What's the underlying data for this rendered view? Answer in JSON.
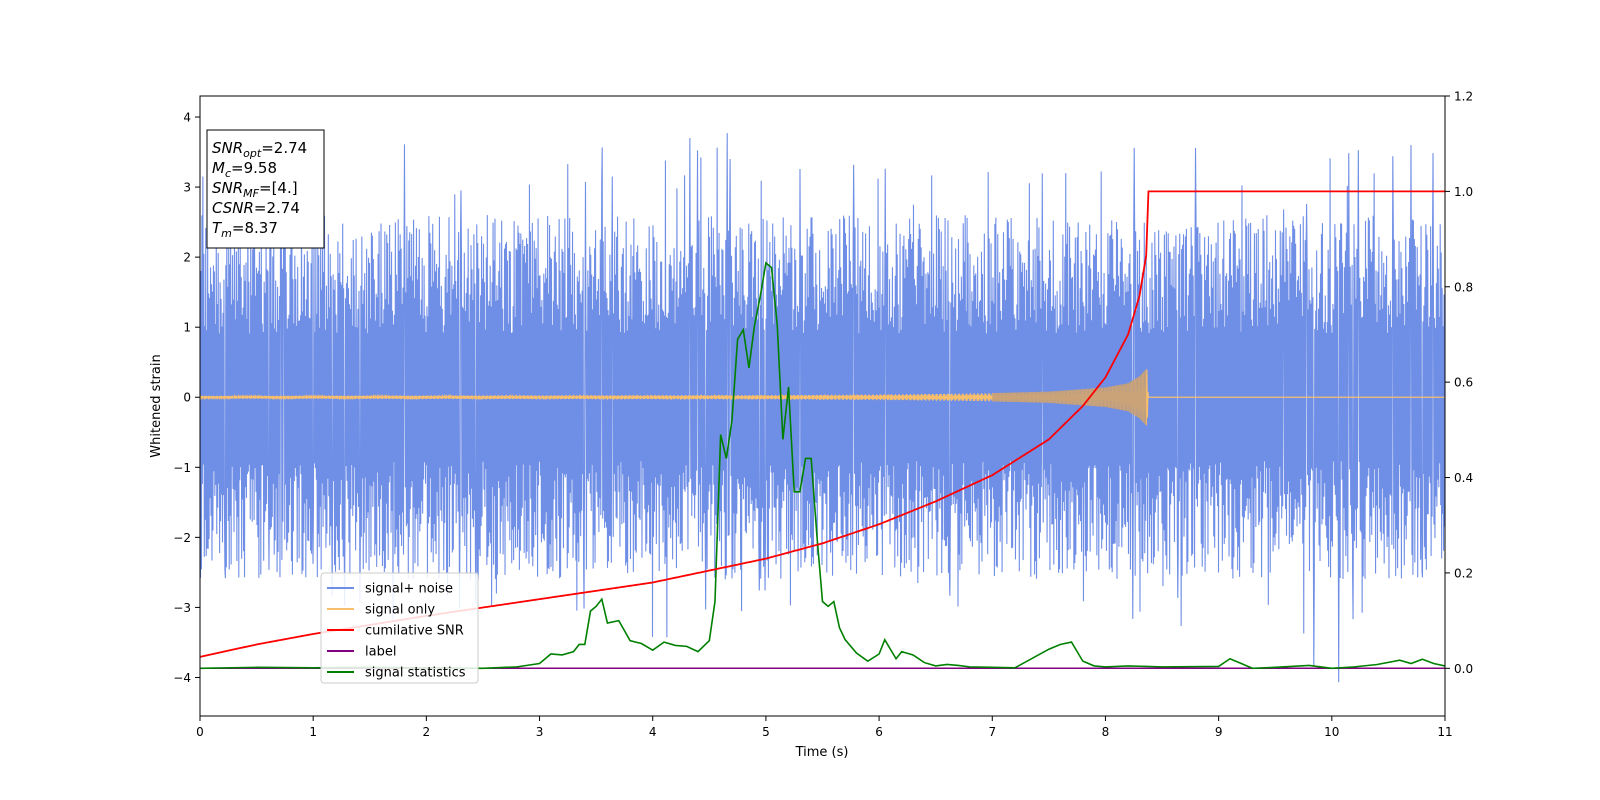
{
  "chart_data": {
    "type": "line",
    "xlabel": "Time (s)",
    "ylabel": "Whitened strain",
    "xlim": [
      0,
      11
    ],
    "ylim": [
      -4.55,
      4.3
    ],
    "y2lim": [
      -0.1,
      1.2
    ],
    "x_ticks": [
      0,
      1,
      2,
      3,
      4,
      5,
      6,
      7,
      8,
      9,
      10,
      11
    ],
    "y_ticks": [
      -4,
      -3,
      -2,
      -1,
      0,
      1,
      2,
      3,
      4
    ],
    "y2_ticks": [
      0.0,
      0.2,
      0.4,
      0.6,
      0.8,
      1.0,
      1.2
    ],
    "grid": false,
    "legend_position": "lower-left",
    "colors": {
      "noise": "#6f8ee6",
      "signal": "#f7be6c",
      "signal_chirp": "#c4a07a",
      "cumulative": "#ff0000",
      "label": "#800080",
      "statistics": "#008000"
    },
    "series": [
      {
        "name": "signal+ noise",
        "axis": "left",
        "envelope": {
          "x": [
            0,
            0.5,
            1,
            1.5,
            2,
            2.5,
            3,
            3.5,
            4,
            4.5,
            5,
            5.5,
            6,
            6.5,
            7,
            7.5,
            8,
            8.5,
            9,
            9.5,
            10,
            10.5,
            11
          ],
          "upper": [
            3.9,
            3.5,
            3.3,
            3.8,
            3.6,
            3.2,
            3.8,
            3.7,
            3.5,
            3.9,
            3.6,
            3.4,
            3.5,
            3.3,
            3.7,
            3.2,
            3.6,
            3.9,
            3.7,
            3.2,
            3.6,
            3.5,
            3.9
          ],
          "lower": [
            -2.6,
            -3.0,
            -2.8,
            -3.4,
            -3.2,
            -3.1,
            -3.3,
            -3.0,
            -3.6,
            -3.3,
            -3.0,
            -3.4,
            -3.8,
            -3.0,
            -3.1,
            -2.9,
            -3.2,
            -3.3,
            -3.8,
            -3.1,
            -4.2,
            -3.3,
            -2.5
          ]
        }
      },
      {
        "name": "signal only",
        "axis": "left",
        "x": [
          0,
          5,
          6,
          7,
          7.5,
          8,
          8.2,
          8.3,
          8.37,
          8.38,
          11
        ],
        "amplitude": [
          0.02,
          0.03,
          0.04,
          0.06,
          0.08,
          0.14,
          0.2,
          0.3,
          0.42,
          0,
          0
        ]
      },
      {
        "name": "cumilative SNR",
        "axis": "right",
        "x": [
          0,
          0.5,
          1,
          2,
          3,
          4,
          5,
          5.5,
          6,
          6.5,
          7,
          7.5,
          7.8,
          8,
          8.2,
          8.3,
          8.37,
          8.38,
          11
        ],
        "values": [
          0.024,
          0.05,
          0.072,
          0.11,
          0.145,
          0.18,
          0.23,
          0.262,
          0.302,
          0.35,
          0.405,
          0.48,
          0.55,
          0.61,
          0.7,
          0.78,
          0.88,
          1.0,
          1.0
        ]
      },
      {
        "name": "label",
        "axis": "right",
        "x": [
          0,
          11
        ],
        "values": [
          0,
          0
        ]
      },
      {
        "name": "signal statistics",
        "axis": "right",
        "x": [
          0,
          0.5,
          1,
          1.5,
          2,
          2.5,
          2.8,
          3.0,
          3.1,
          3.2,
          3.3,
          3.35,
          3.4,
          3.45,
          3.5,
          3.55,
          3.6,
          3.7,
          3.8,
          3.9,
          4.0,
          4.1,
          4.2,
          4.3,
          4.4,
          4.5,
          4.55,
          4.6,
          4.65,
          4.7,
          4.75,
          4.8,
          4.85,
          4.9,
          4.95,
          5.0,
          5.05,
          5.1,
          5.15,
          5.2,
          5.25,
          5.3,
          5.35,
          5.4,
          5.45,
          5.5,
          5.55,
          5.6,
          5.65,
          5.7,
          5.8,
          5.9,
          6.0,
          6.05,
          6.1,
          6.15,
          6.2,
          6.3,
          6.4,
          6.5,
          6.6,
          6.7,
          6.8,
          7.0,
          7.2,
          7.5,
          7.6,
          7.7,
          7.75,
          7.8,
          7.9,
          8.0,
          8.2,
          8.5,
          9.0,
          9.1,
          9.2,
          9.3,
          9.5,
          9.8,
          10.0,
          10.2,
          10.4,
          10.6,
          10.7,
          10.8,
          10.9,
          11.0
        ],
        "values": [
          0.0,
          0.002,
          0.001,
          0.002,
          0.001,
          0.0,
          0.003,
          0.01,
          0.03,
          0.028,
          0.035,
          0.05,
          0.05,
          0.12,
          0.13,
          0.145,
          0.095,
          0.1,
          0.058,
          0.052,
          0.038,
          0.055,
          0.048,
          0.046,
          0.035,
          0.058,
          0.14,
          0.49,
          0.44,
          0.52,
          0.69,
          0.71,
          0.63,
          0.72,
          0.78,
          0.85,
          0.84,
          0.72,
          0.48,
          0.59,
          0.37,
          0.37,
          0.44,
          0.44,
          0.28,
          0.14,
          0.13,
          0.14,
          0.085,
          0.06,
          0.032,
          0.015,
          0.03,
          0.06,
          0.04,
          0.02,
          0.035,
          0.028,
          0.012,
          0.005,
          0.008,
          0.006,
          0.003,
          0.002,
          0.001,
          0.04,
          0.05,
          0.055,
          0.035,
          0.015,
          0.005,
          0.003,
          0.005,
          0.003,
          0.004,
          0.02,
          0.01,
          0.0,
          0.002,
          0.006,
          0.0,
          0.003,
          0.008,
          0.017,
          0.01,
          0.019,
          0.01,
          0.005
        ]
      }
    ]
  },
  "annotation": {
    "lines": [
      {
        "symbol": "SNR",
        "sub": "opt",
        "value": "=2.74"
      },
      {
        "symbol": "M",
        "sub": "c",
        "value": "=9.58"
      },
      {
        "symbol": "SNR",
        "sub": "MF",
        "value": "=[4.]"
      },
      {
        "symbol": "CSNR",
        "sub": "",
        "value": "=2.74"
      },
      {
        "symbol": "T",
        "sub": "m",
        "value": "=8.37"
      }
    ]
  }
}
